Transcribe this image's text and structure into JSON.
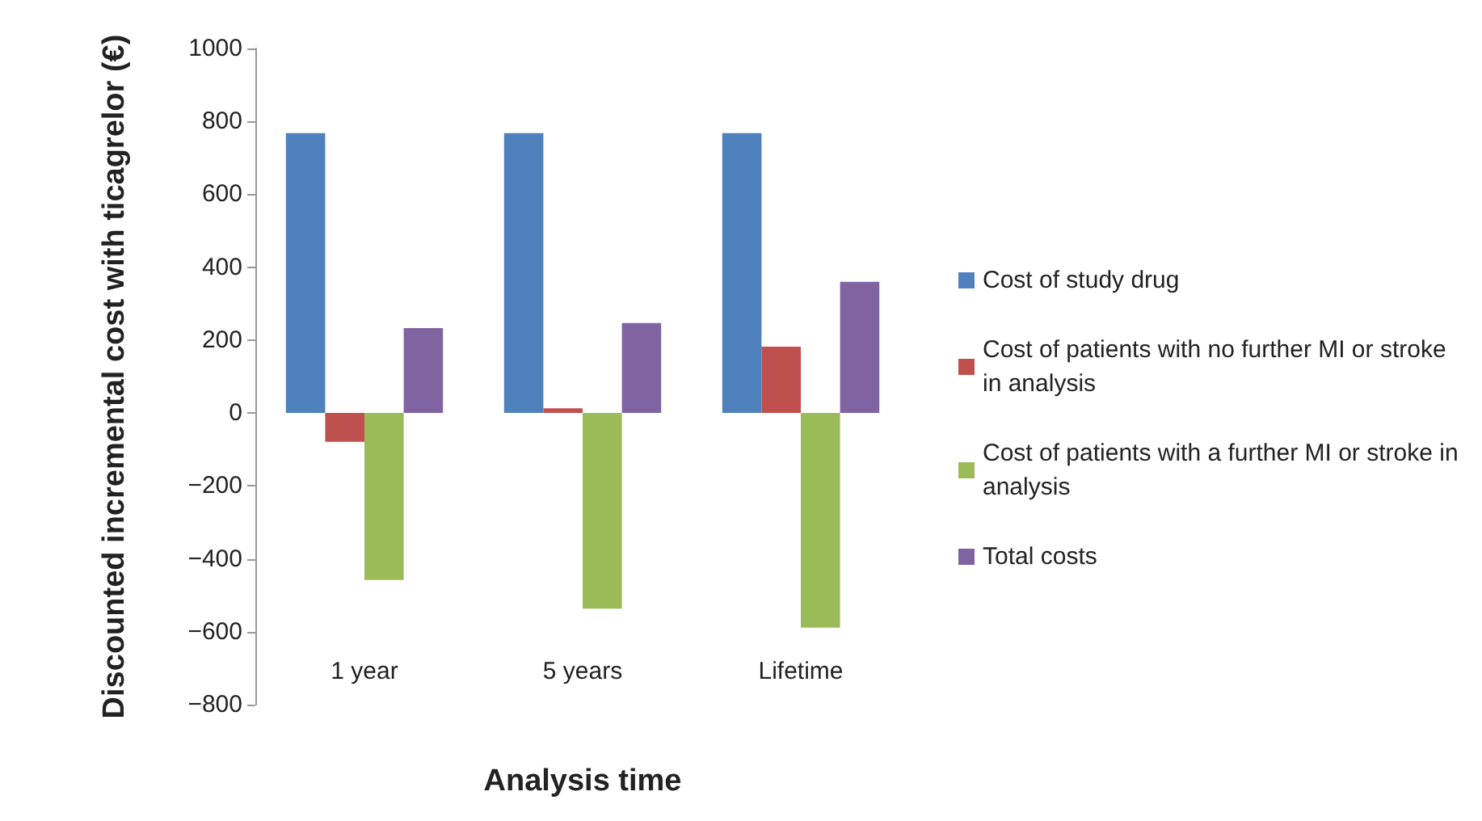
{
  "chart_data": {
    "type": "bar",
    "xlabel": "Analysis time",
    "ylabel": "Discounted incremental cost with ticagrelor (€)",
    "categories": [
      "1 year",
      "5 years",
      "Lifetime"
    ],
    "series": [
      {
        "name": "Cost of study drug",
        "color": "#4f81bd",
        "values": [
          768,
          768,
          768
        ]
      },
      {
        "name": "Cost of patients with no further MI or stroke in analysis",
        "color": "#c0504d",
        "values": [
          -79,
          13,
          182
        ]
      },
      {
        "name": "Cost of patients with a further MI or stroke in analysis",
        "color": "#9bbb59",
        "values": [
          -458,
          -537,
          -589
        ]
      },
      {
        "name": "Total costs",
        "color": "#8064a2",
        "values": [
          233,
          247,
          360
        ]
      }
    ],
    "ylim": [
      -800,
      1000
    ],
    "yticks": [
      -800,
      -600,
      -400,
      -200,
      0,
      200,
      400,
      600,
      800,
      1000
    ],
    "grid": false,
    "legend": "right"
  }
}
